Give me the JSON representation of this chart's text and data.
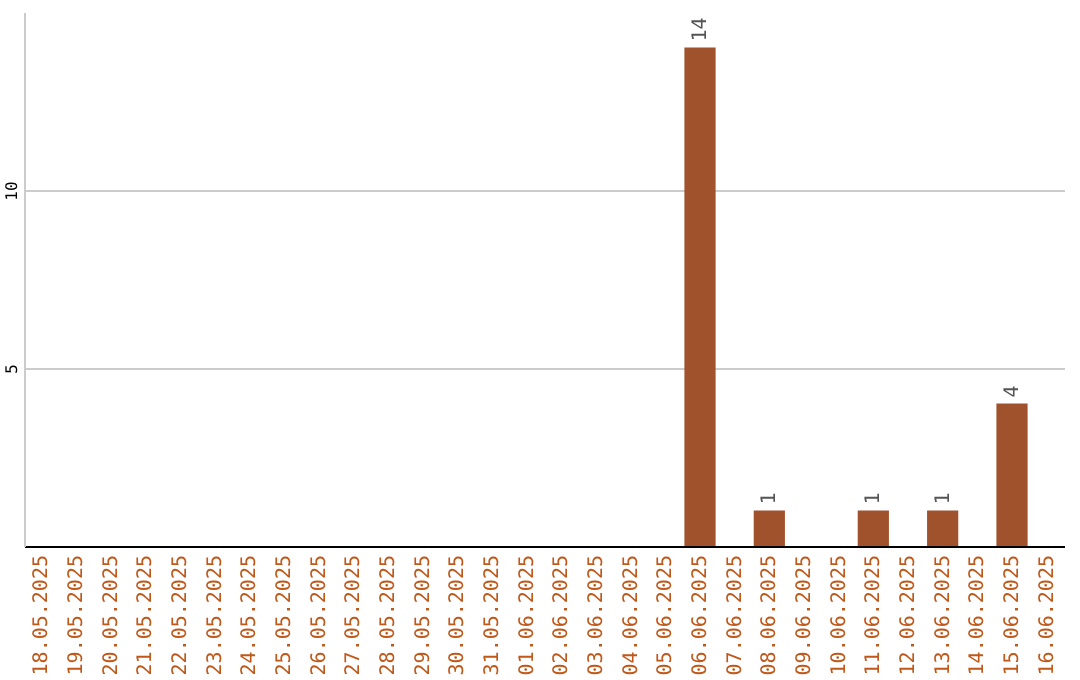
{
  "chart_data": {
    "type": "bar",
    "categories": [
      "18.05.2025",
      "19.05.2025",
      "20.05.2025",
      "21.05.2025",
      "22.05.2025",
      "23.05.2025",
      "24.05.2025",
      "25.05.2025",
      "26.05.2025",
      "27.05.2025",
      "28.05.2025",
      "29.05.2025",
      "30.05.2025",
      "31.05.2025",
      "01.06.2025",
      "02.06.2025",
      "03.06.2025",
      "04.06.2025",
      "05.06.2025",
      "06.06.2025",
      "07.06.2025",
      "08.06.2025",
      "09.06.2025",
      "10.06.2025",
      "11.06.2025",
      "12.06.2025",
      "13.06.2025",
      "14.06.2025",
      "15.06.2025",
      "16.06.2025"
    ],
    "values": [
      0,
      0,
      0,
      0,
      0,
      0,
      0,
      0,
      0,
      0,
      0,
      0,
      0,
      0,
      0,
      0,
      0,
      0,
      0,
      14,
      0,
      1,
      0,
      0,
      1,
      0,
      1,
      0,
      4,
      0
    ],
    "value_labels": [
      null,
      null,
      null,
      null,
      null,
      null,
      null,
      null,
      null,
      null,
      null,
      null,
      null,
      null,
      null,
      null,
      null,
      null,
      null,
      "14",
      null,
      "1",
      null,
      null,
      "1",
      null,
      "1",
      null,
      "4",
      null
    ],
    "color": "#a0522d",
    "ylim": [
      0,
      15
    ],
    "yticks": [
      5,
      10
    ],
    "grid": "y"
  }
}
